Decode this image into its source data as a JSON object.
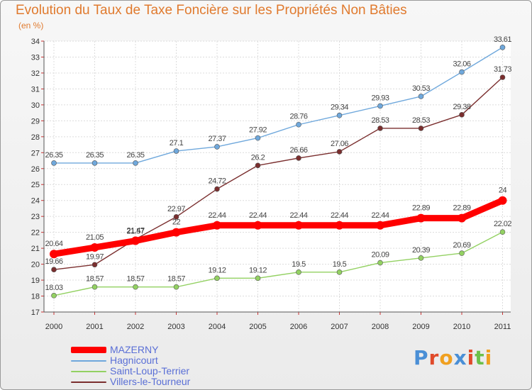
{
  "chart_data": {
    "type": "line",
    "title": "Evolution du Taux de Taxe Foncière sur les Propriétés Non Bâties",
    "subtitle": "(en %)",
    "x": [
      "2000",
      "2001",
      "2002",
      "2003",
      "2004",
      "2005",
      "2006",
      "2007",
      "2008",
      "2009",
      "2010",
      "2011"
    ],
    "ylim": [
      17,
      34
    ],
    "yticks": [
      17,
      18,
      19,
      20,
      21,
      22,
      23,
      24,
      25,
      26,
      27,
      28,
      29,
      30,
      31,
      32,
      33,
      34
    ],
    "grid": true,
    "legend": "bottom-left",
    "series": [
      {
        "name": "MAZERNY",
        "color": "#ff0000",
        "values": [
          20.64,
          21.05,
          21.47,
          22,
          22.44,
          22.44,
          22.44,
          22.44,
          22.44,
          22.89,
          22.89,
          24
        ],
        "labels": [
          "20.64",
          "21.05",
          "21.47",
          "22",
          "22.44",
          "22.44",
          "22.44",
          "22.44",
          "22.44",
          "22.89",
          "22.89",
          "24"
        ]
      },
      {
        "name": "Hagnicourt",
        "color": "#6fa8dc",
        "values": [
          26.35,
          26.35,
          26.35,
          27.1,
          27.37,
          27.92,
          28.76,
          29.34,
          29.93,
          30.53,
          32.06,
          33.61
        ],
        "labels": [
          "26.35",
          "26.35",
          "26.35",
          "27.1",
          "27.37",
          "27.92",
          "28.76",
          "29.34",
          "29.93",
          "30.53",
          "32.06",
          "33.61"
        ]
      },
      {
        "name": "Saint-Loup-Terrier",
        "color": "#93d162",
        "values": [
          18.03,
          18.57,
          18.57,
          18.57,
          19.12,
          19.12,
          19.5,
          19.5,
          20.09,
          20.39,
          20.69,
          22.02
        ],
        "labels": [
          "18.03",
          "18.57",
          "18.57",
          "18.57",
          "19.12",
          "19.12",
          "19.5",
          "19.5",
          "20.09",
          "20.39",
          "20.69",
          "22.02"
        ]
      },
      {
        "name": "Villers-le-Tourneur",
        "color": "#7a2e2e",
        "values": [
          19.66,
          19.97,
          21.57,
          22.97,
          24.72,
          26.2,
          26.66,
          27.06,
          28.53,
          28.53,
          29.38,
          31.73
        ],
        "labels": [
          "19.66",
          "19.97",
          "21.57",
          "22.97",
          "24.72",
          "26.2",
          "26.66",
          "27.06",
          "28.53",
          "28.53",
          "29.38",
          "31.73"
        ]
      }
    ]
  },
  "logo": {
    "letters": [
      "P",
      "r",
      "o",
      "x",
      "i",
      "t",
      "i"
    ],
    "colors": [
      "#4a8fd6",
      "#e04a2a",
      "#f0a020",
      "#4a8fd6",
      "#e04a2a",
      "#6cc04a",
      "#f0a020"
    ]
  }
}
